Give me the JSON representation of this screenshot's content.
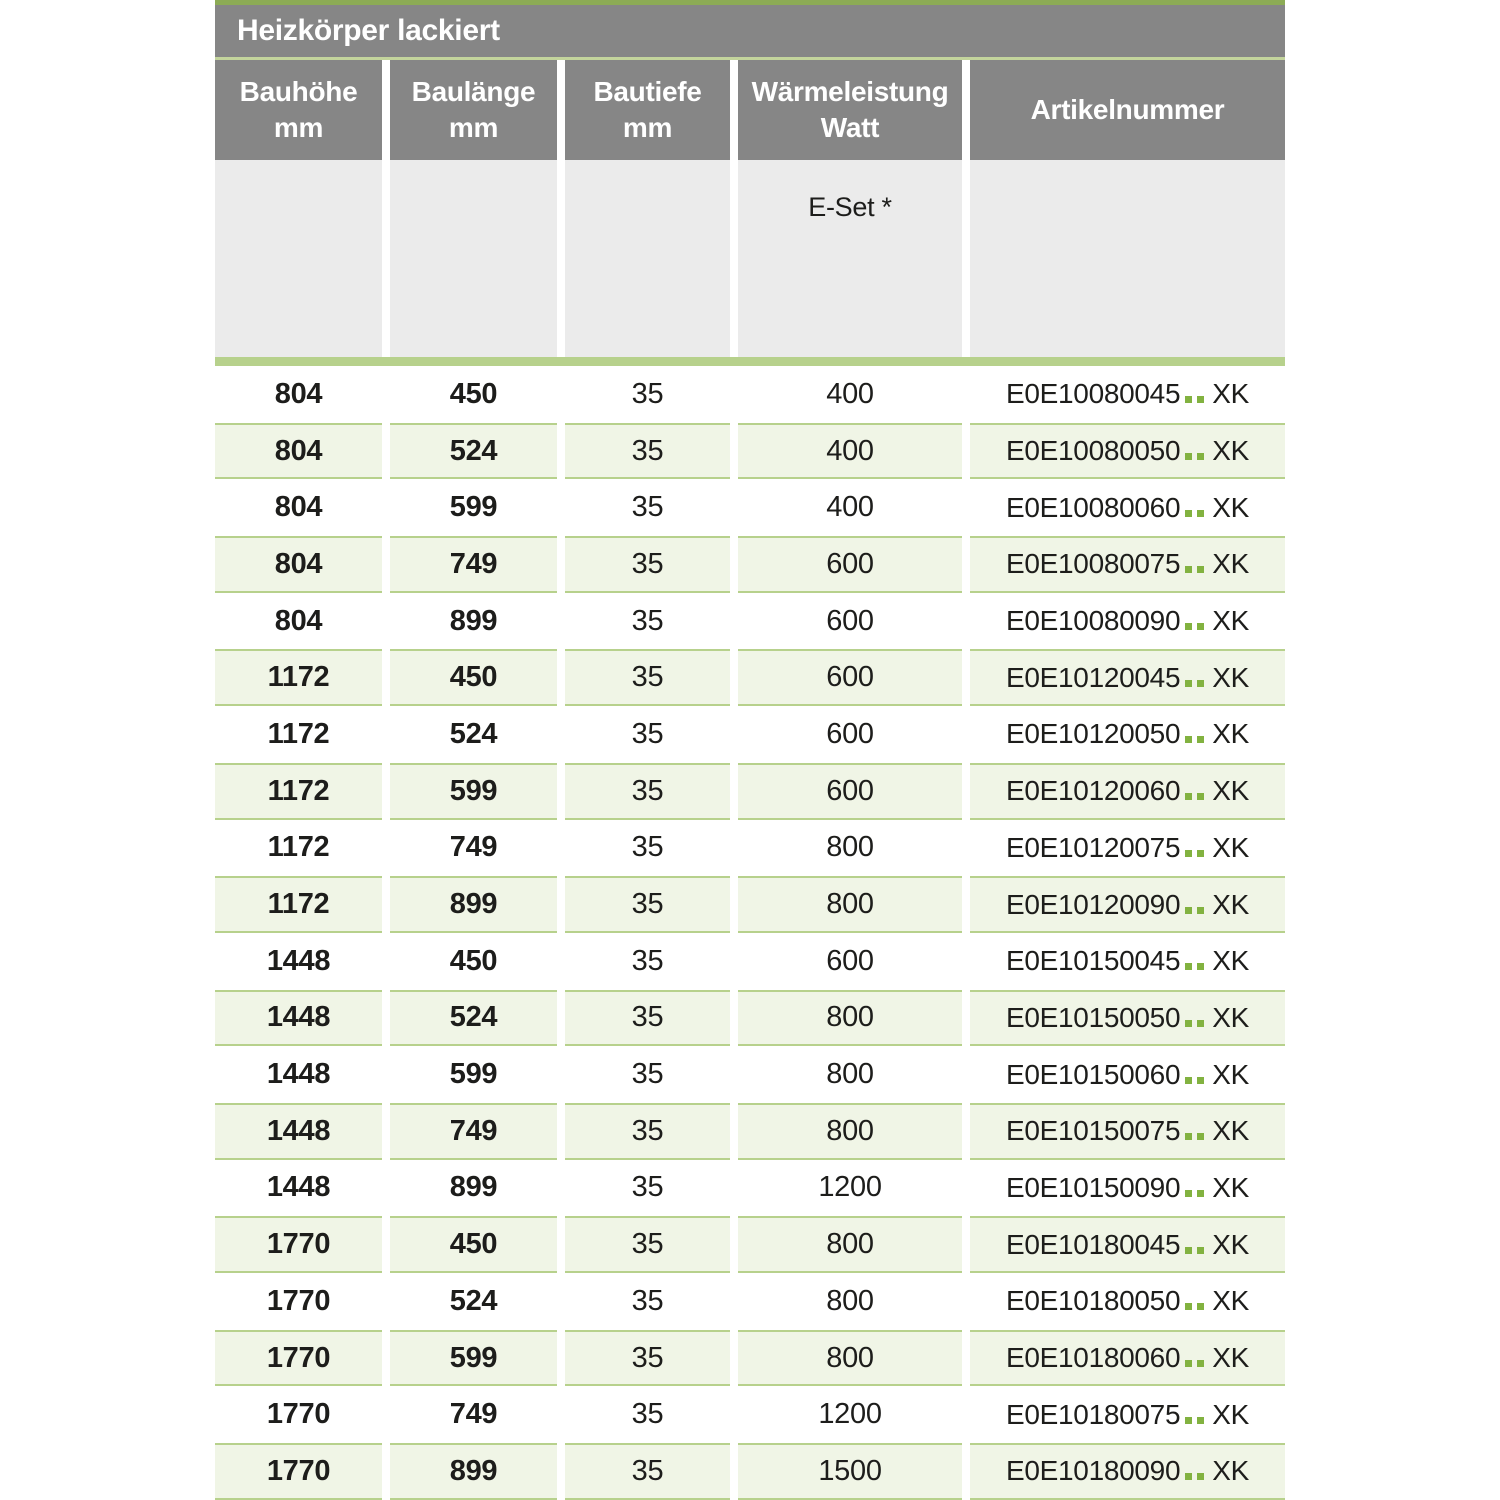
{
  "table": {
    "title": "Heizkörper lackiert",
    "columns": [
      {
        "label": "Bauhöhe",
        "unit": "mm"
      },
      {
        "label": "Baulänge",
        "unit": "mm"
      },
      {
        "label": "Bautiefe",
        "unit": "mm"
      },
      {
        "label": "Wärmeleistung",
        "unit": "Watt"
      },
      {
        "label": "Artikelnummer",
        "unit": ""
      }
    ],
    "subheader": {
      "eset_label": "E-Set *"
    },
    "artikel_suffix": "XK",
    "rows": [
      {
        "bauhoehe": "804",
        "baulaenge": "450",
        "bautiefe": "35",
        "watt": "400",
        "artikel": "E0E10080045"
      },
      {
        "bauhoehe": "804",
        "baulaenge": "524",
        "bautiefe": "35",
        "watt": "400",
        "artikel": "E0E10080050"
      },
      {
        "bauhoehe": "804",
        "baulaenge": "599",
        "bautiefe": "35",
        "watt": "400",
        "artikel": "E0E10080060"
      },
      {
        "bauhoehe": "804",
        "baulaenge": "749",
        "bautiefe": "35",
        "watt": "600",
        "artikel": "E0E10080075"
      },
      {
        "bauhoehe": "804",
        "baulaenge": "899",
        "bautiefe": "35",
        "watt": "600",
        "artikel": "E0E10080090"
      },
      {
        "bauhoehe": "1172",
        "baulaenge": "450",
        "bautiefe": "35",
        "watt": "600",
        "artikel": "E0E10120045"
      },
      {
        "bauhoehe": "1172",
        "baulaenge": "524",
        "bautiefe": "35",
        "watt": "600",
        "artikel": "E0E10120050"
      },
      {
        "bauhoehe": "1172",
        "baulaenge": "599",
        "bautiefe": "35",
        "watt": "600",
        "artikel": "E0E10120060"
      },
      {
        "bauhoehe": "1172",
        "baulaenge": "749",
        "bautiefe": "35",
        "watt": "800",
        "artikel": "E0E10120075"
      },
      {
        "bauhoehe": "1172",
        "baulaenge": "899",
        "bautiefe": "35",
        "watt": "800",
        "artikel": "E0E10120090"
      },
      {
        "bauhoehe": "1448",
        "baulaenge": "450",
        "bautiefe": "35",
        "watt": "600",
        "artikel": "E0E10150045"
      },
      {
        "bauhoehe": "1448",
        "baulaenge": "524",
        "bautiefe": "35",
        "watt": "800",
        "artikel": "E0E10150050"
      },
      {
        "bauhoehe": "1448",
        "baulaenge": "599",
        "bautiefe": "35",
        "watt": "800",
        "artikel": "E0E10150060"
      },
      {
        "bauhoehe": "1448",
        "baulaenge": "749",
        "bautiefe": "35",
        "watt": "800",
        "artikel": "E0E10150075"
      },
      {
        "bauhoehe": "1448",
        "baulaenge": "899",
        "bautiefe": "35",
        "watt": "1200",
        "artikel": "E0E10150090"
      },
      {
        "bauhoehe": "1770",
        "baulaenge": "450",
        "bautiefe": "35",
        "watt": "800",
        "artikel": "E0E10180045"
      },
      {
        "bauhoehe": "1770",
        "baulaenge": "524",
        "bautiefe": "35",
        "watt": "800",
        "artikel": "E0E10180050"
      },
      {
        "bauhoehe": "1770",
        "baulaenge": "599",
        "bautiefe": "35",
        "watt": "800",
        "artikel": "E0E10180060"
      },
      {
        "bauhoehe": "1770",
        "baulaenge": "749",
        "bautiefe": "35",
        "watt": "1200",
        "artikel": "E0E10180075"
      },
      {
        "bauhoehe": "1770",
        "baulaenge": "899",
        "bautiefe": "35",
        "watt": "1500",
        "artikel": "E0E10180090"
      }
    ]
  },
  "colors": {
    "accent_top": "#8cab55",
    "header_gray": "#868686",
    "title_line": "#c3d49c",
    "subheader_bg": "#ebebeb",
    "divider_green": "#b7d18c",
    "row_alt_bg": "#f0f5e6",
    "row_border": "#b7d18c",
    "dot_green": "#82b240",
    "text_dark": "#1d1d1b"
  }
}
